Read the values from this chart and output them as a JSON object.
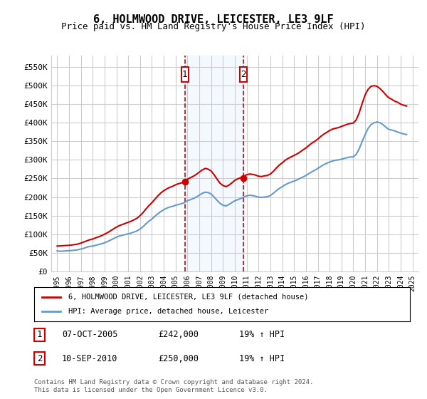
{
  "title": "6, HOLMWOOD DRIVE, LEICESTER, LE3 9LF",
  "subtitle": "Price paid vs. HM Land Registry's House Price Index (HPI)",
  "ylabel_fmt": "£{0}K",
  "yticks": [
    0,
    50000,
    100000,
    150000,
    200000,
    250000,
    300000,
    350000,
    400000,
    450000,
    500000,
    550000
  ],
  "ytick_labels": [
    "£0",
    "£50K",
    "£100K",
    "£150K",
    "£200K",
    "£250K",
    "£300K",
    "£350K",
    "£400K",
    "£450K",
    "£500K",
    "£550K"
  ],
  "ylim": [
    0,
    580000
  ],
  "xlim_start": 1994.5,
  "xlim_end": 2025.5,
  "xticks": [
    1995,
    1996,
    1997,
    1998,
    1999,
    2000,
    2001,
    2002,
    2003,
    2004,
    2005,
    2006,
    2007,
    2008,
    2009,
    2010,
    2011,
    2012,
    2013,
    2014,
    2015,
    2016,
    2017,
    2018,
    2019,
    2020,
    2021,
    2022,
    2023,
    2024,
    2025
  ],
  "hpi_color": "#6699cc",
  "price_color": "#cc0000",
  "grid_color": "#cccccc",
  "background_color": "#ffffff",
  "purchase1_date": 2005.77,
  "purchase1_price": 242000,
  "purchase1_label": "1",
  "purchase2_date": 2010.7,
  "purchase2_price": 250000,
  "purchase2_label": "2",
  "legend1_text": "6, HOLMWOOD DRIVE, LEICESTER, LE3 9LF (detached house)",
  "legend2_text": "HPI: Average price, detached house, Leicester",
  "table_rows": [
    {
      "num": "1",
      "date": "07-OCT-2005",
      "price": "£242,000",
      "pct": "19% ↑ HPI"
    },
    {
      "num": "2",
      "date": "10-SEP-2010",
      "price": "£250,000",
      "pct": "19% ↑ HPI"
    }
  ],
  "footnote": "Contains HM Land Registry data © Crown copyright and database right 2024.\nThis data is licensed under the Open Government Licence v3.0.",
  "shaded_region_color": "#ddeeff",
  "marker_box_color": "#cc0000",
  "marker_box_facecolor": "#ffffff",
  "hpi_data_x": [
    1995.0,
    1995.25,
    1995.5,
    1995.75,
    1996.0,
    1996.25,
    1996.5,
    1996.75,
    1997.0,
    1997.25,
    1997.5,
    1997.75,
    1998.0,
    1998.25,
    1998.5,
    1998.75,
    1999.0,
    1999.25,
    1999.5,
    1999.75,
    2000.0,
    2000.25,
    2000.5,
    2000.75,
    2001.0,
    2001.25,
    2001.5,
    2001.75,
    2002.0,
    2002.25,
    2002.5,
    2002.75,
    2003.0,
    2003.25,
    2003.5,
    2003.75,
    2004.0,
    2004.25,
    2004.5,
    2004.75,
    2005.0,
    2005.25,
    2005.5,
    2005.75,
    2006.0,
    2006.25,
    2006.5,
    2006.75,
    2007.0,
    2007.25,
    2007.5,
    2007.75,
    2008.0,
    2008.25,
    2008.5,
    2008.75,
    2009.0,
    2009.25,
    2009.5,
    2009.75,
    2010.0,
    2010.25,
    2010.5,
    2010.75,
    2011.0,
    2011.25,
    2011.5,
    2011.75,
    2012.0,
    2012.25,
    2012.5,
    2012.75,
    2013.0,
    2013.25,
    2013.5,
    2013.75,
    2014.0,
    2014.25,
    2014.5,
    2014.75,
    2015.0,
    2015.25,
    2015.5,
    2015.75,
    2016.0,
    2016.25,
    2016.5,
    2016.75,
    2017.0,
    2017.25,
    2017.5,
    2017.75,
    2018.0,
    2018.25,
    2018.5,
    2018.75,
    2019.0,
    2019.25,
    2019.5,
    2019.75,
    2020.0,
    2020.25,
    2020.5,
    2020.75,
    2021.0,
    2021.25,
    2021.5,
    2021.75,
    2022.0,
    2022.25,
    2022.5,
    2022.75,
    2023.0,
    2023.25,
    2023.5,
    2023.75,
    2024.0,
    2024.25,
    2024.5
  ],
  "hpi_data_y": [
    55000,
    54000,
    54500,
    55000,
    55500,
    56000,
    57000,
    58000,
    60000,
    62000,
    65000,
    67000,
    68000,
    70000,
    72000,
    74000,
    77000,
    80000,
    84000,
    88000,
    92000,
    95000,
    97000,
    99000,
    101000,
    103000,
    106000,
    109000,
    114000,
    120000,
    128000,
    135000,
    141000,
    148000,
    155000,
    161000,
    166000,
    170000,
    173000,
    175000,
    178000,
    180000,
    182000,
    185000,
    190000,
    193000,
    196000,
    200000,
    205000,
    210000,
    213000,
    212000,
    208000,
    200000,
    191000,
    183000,
    178000,
    176000,
    180000,
    185000,
    190000,
    193000,
    196000,
    200000,
    203000,
    205000,
    204000,
    202000,
    200000,
    199000,
    200000,
    201000,
    204000,
    210000,
    217000,
    223000,
    228000,
    233000,
    237000,
    240000,
    243000,
    246000,
    250000,
    254000,
    258000,
    263000,
    268000,
    272000,
    277000,
    282000,
    287000,
    291000,
    294000,
    297000,
    299000,
    300000,
    302000,
    304000,
    306000,
    308000,
    308000,
    315000,
    330000,
    350000,
    368000,
    385000,
    395000,
    400000,
    402000,
    400000,
    395000,
    388000,
    382000,
    380000,
    378000,
    375000,
    372000,
    370000,
    368000
  ],
  "price_data_x": [
    1995.0,
    1995.25,
    1995.5,
    1995.75,
    1996.0,
    1996.25,
    1996.5,
    1996.75,
    1997.0,
    1997.25,
    1997.5,
    1997.75,
    1998.0,
    1998.25,
    1998.5,
    1998.75,
    1999.0,
    1999.25,
    1999.5,
    1999.75,
    2000.0,
    2000.25,
    2000.5,
    2000.75,
    2001.0,
    2001.25,
    2001.5,
    2001.75,
    2002.0,
    2002.25,
    2002.5,
    2002.75,
    2003.0,
    2003.25,
    2003.5,
    2003.75,
    2004.0,
    2004.25,
    2004.5,
    2004.75,
    2005.0,
    2005.25,
    2005.5,
    2005.75,
    2006.0,
    2006.25,
    2006.5,
    2006.75,
    2007.0,
    2007.25,
    2007.5,
    2007.75,
    2008.0,
    2008.25,
    2008.5,
    2008.75,
    2009.0,
    2009.25,
    2009.5,
    2009.75,
    2010.0,
    2010.25,
    2010.5,
    2010.75,
    2011.0,
    2011.25,
    2011.5,
    2011.75,
    2012.0,
    2012.25,
    2012.5,
    2012.75,
    2013.0,
    2013.25,
    2013.5,
    2013.75,
    2014.0,
    2014.25,
    2014.5,
    2014.75,
    2015.0,
    2015.25,
    2015.5,
    2015.75,
    2016.0,
    2016.25,
    2016.5,
    2016.75,
    2017.0,
    2017.25,
    2017.5,
    2017.75,
    2018.0,
    2018.25,
    2018.5,
    2018.75,
    2019.0,
    2019.25,
    2019.5,
    2019.75,
    2020.0,
    2020.25,
    2020.5,
    2020.75,
    2021.0,
    2021.25,
    2021.5,
    2021.75,
    2022.0,
    2022.25,
    2022.5,
    2022.75,
    2023.0,
    2023.25,
    2023.5,
    2023.75,
    2024.0,
    2024.25,
    2024.5
  ],
  "price_data_y": [
    68000,
    68500,
    69000,
    69500,
    70000,
    71000,
    72000,
    73500,
    76000,
    79000,
    82000,
    85000,
    87000,
    90000,
    93000,
    96000,
    100000,
    104000,
    109000,
    114000,
    119000,
    123000,
    126000,
    129000,
    132000,
    135000,
    139000,
    143000,
    150000,
    158000,
    168000,
    177000,
    185000,
    194000,
    203000,
    211000,
    217000,
    222000,
    226000,
    229000,
    233000,
    236000,
    238000,
    242000,
    248000,
    252000,
    256000,
    261000,
    267000,
    273000,
    277000,
    275000,
    270000,
    260000,
    248000,
    237000,
    231000,
    228000,
    232000,
    238000,
    245000,
    249000,
    252000,
    256000,
    260000,
    262000,
    261000,
    259000,
    256000,
    255000,
    257000,
    258000,
    262000,
    269000,
    278000,
    286000,
    292000,
    299000,
    304000,
    308000,
    312000,
    316000,
    321000,
    327000,
    332000,
    339000,
    345000,
    350000,
    356000,
    363000,
    369000,
    374000,
    379000,
    383000,
    385000,
    387000,
    390000,
    393000,
    396000,
    398000,
    399000,
    408000,
    427000,
    452000,
    475000,
    490000,
    498000,
    500000,
    498000,
    492000,
    484000,
    475000,
    467000,
    463000,
    458000,
    455000,
    450000,
    447000,
    445000
  ]
}
